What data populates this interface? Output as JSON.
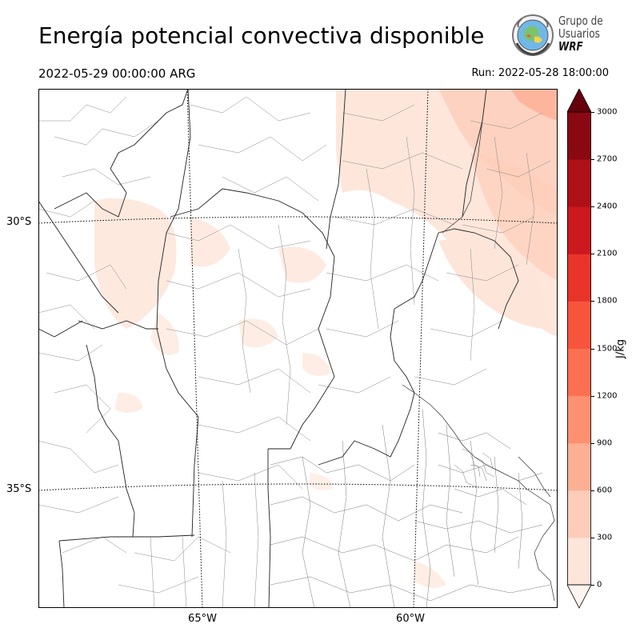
{
  "header": {
    "title": "Energía potencial convectiva disponible",
    "valid_time": "2022-05-29 00:00:00 ARG",
    "run_time": "Run: 2022-05-28 18:00:00"
  },
  "logo": {
    "line1": "Grupo de",
    "line2": "Usuarios",
    "line3": "WRF"
  },
  "map": {
    "lat_labels": [
      "30°S",
      "35°S"
    ],
    "lon_labels": [
      "65°W",
      "60°W"
    ]
  },
  "colorbar": {
    "unit": "J/kg",
    "ticks": [
      "0",
      "300",
      "600",
      "900",
      "1200",
      "1500",
      "1800",
      "2100",
      "2400",
      "2700",
      "3000"
    ],
    "colors": [
      "#fee5d9",
      "#fdcdb9",
      "#fcaf93",
      "#fc9070",
      "#fb7050",
      "#f6553c",
      "#e83429",
      "#cc191e",
      "#ae1117",
      "#8a0812",
      "#67000d"
    ],
    "extend": "both"
  }
}
